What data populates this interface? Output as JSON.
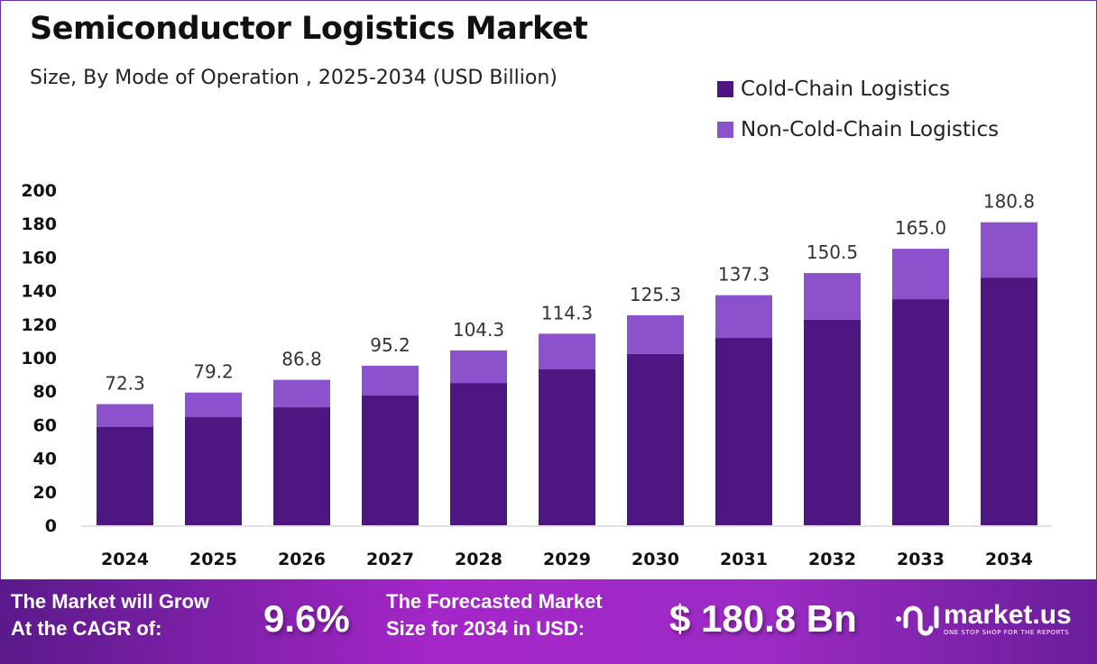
{
  "chart_data": {
    "type": "bar",
    "stacked": true,
    "title": "Semiconductor Logistics Market",
    "subtitle": "Size, By Mode of Operation , 2025-2034 (USD Billion)",
    "categories": [
      "2024",
      "2025",
      "2026",
      "2027",
      "2028",
      "2029",
      "2030",
      "2031",
      "2032",
      "2033",
      "2034"
    ],
    "series": [
      {
        "name": "Cold-Chain Logistics",
        "color": "#4e1680",
        "values": [
          58.6,
          64.5,
          70.4,
          77.4,
          84.9,
          93.0,
          102.2,
          111.8,
          122.6,
          134.9,
          147.8
        ]
      },
      {
        "name": "Non-Cold-Chain Logistics",
        "color": "#8c52cc",
        "values": [
          13.7,
          14.7,
          16.4,
          17.8,
          19.4,
          21.3,
          23.1,
          25.5,
          27.9,
          30.1,
          33.0
        ]
      }
    ],
    "totals": [
      "72.3",
      "79.2",
      "86.8",
      "95.2",
      "104.3",
      "114.3",
      "125.3",
      "137.3",
      "150.5",
      "165.0",
      "180.8"
    ],
    "ylim": [
      0,
      200
    ],
    "yticks": [
      "0",
      "20",
      "40",
      "60",
      "80",
      "100",
      "120",
      "140",
      "160",
      "180",
      "200"
    ],
    "grid": false,
    "legend_position": "top-right"
  },
  "banner": {
    "cagr_label_1": "The Market will Grow",
    "cagr_label_2": "At the CAGR of:",
    "cagr_value": "9.6%",
    "forecast_label_1": "The Forecasted Market",
    "forecast_label_2": "Size for 2034 in USD:",
    "forecast_value": "$ 180.8 Bn",
    "logo_name": "market.us",
    "logo_tagline": "ONE STOP SHOP FOR THE REPORTS"
  }
}
